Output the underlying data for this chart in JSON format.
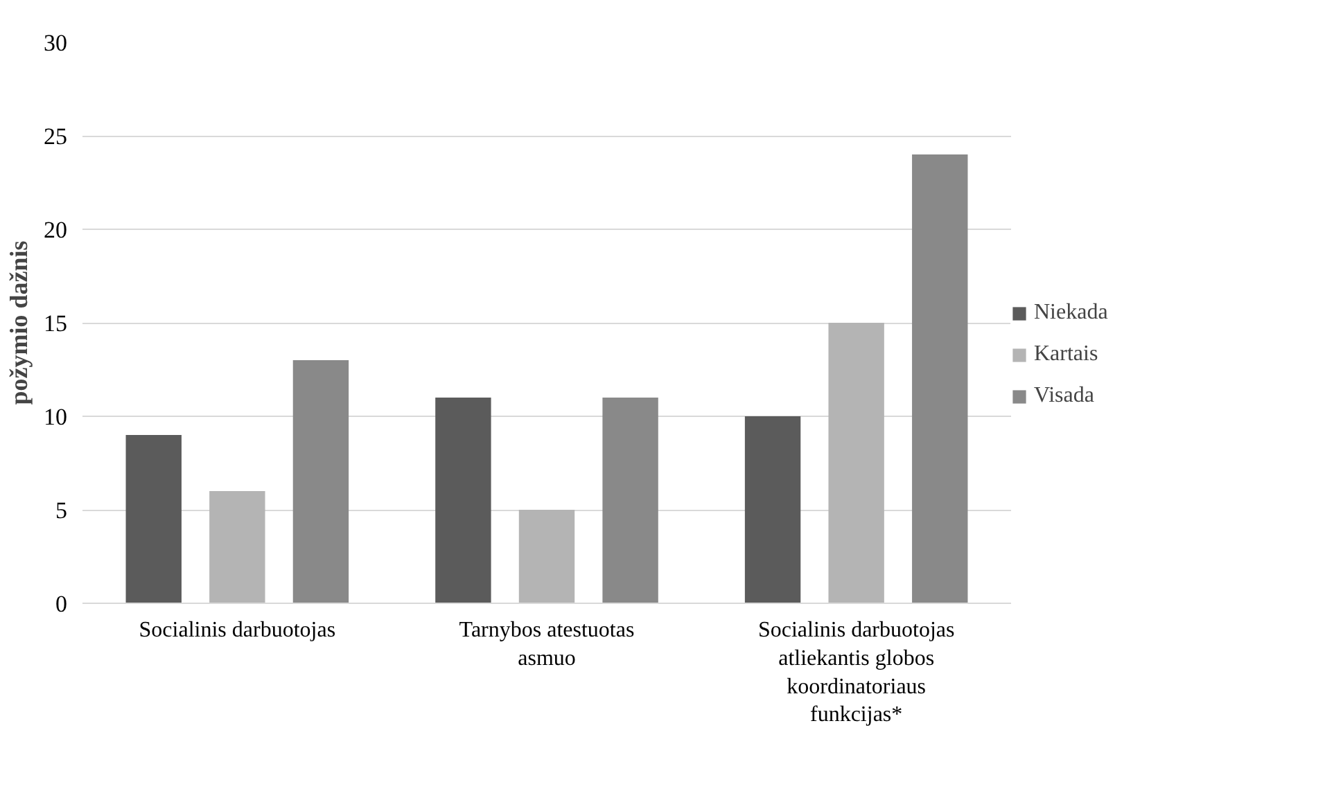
{
  "chart_data": {
    "type": "bar",
    "ylabel": "požymio dažnis",
    "categories": [
      "Socialinis darbuotojas",
      "Tarnybos atestuotas asmuo",
      "Socialinis darbuotojas atliekantis globos koordinatoriaus funkcijas*"
    ],
    "series": [
      {
        "name": "Niekada",
        "color": "#5b5b5b",
        "values": [
          9,
          11,
          10
        ]
      },
      {
        "name": "Kartais",
        "color": "#b4b4b4",
        "values": [
          6,
          5,
          15
        ]
      },
      {
        "name": "Visada",
        "color": "#898989",
        "values": [
          13,
          11,
          24
        ]
      }
    ],
    "ylim": [
      0,
      30
    ],
    "yticks": [
      0,
      5,
      10,
      15,
      20,
      25,
      30
    ],
    "grid": "y",
    "legend": "right"
  }
}
